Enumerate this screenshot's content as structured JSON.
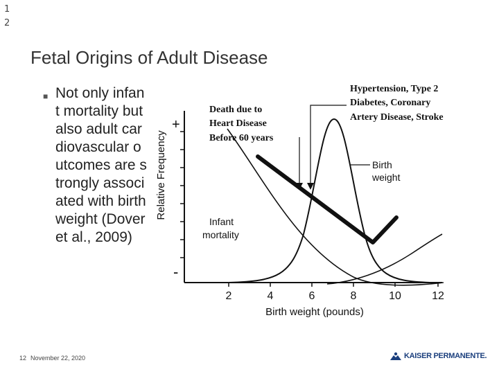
{
  "page_numbers": [
    "1",
    "2"
  ],
  "slide": {
    "title": "Fetal Origins of Adult Disease",
    "bullet": "Not only infant mortality but also adult cardiovascular outcomes are strongly associated with birth weight (Dover et al., 2009)"
  },
  "figure": {
    "ylabel": "Relative Frequency",
    "y_plus": "+",
    "y_minus": "-",
    "xlabel": "Birth weight (pounds)",
    "x_ticks": [
      "2",
      "4",
      "6",
      "8",
      "10",
      "12"
    ],
    "annotation_death": [
      "Death due to",
      "Heart Disease",
      "Before 60 years"
    ],
    "annotation_hypertension": [
      "Hypertension, Type 2",
      "Diabetes, Coronary",
      "Artery Disease, Stroke"
    ],
    "label_birth_weight": [
      "Birth",
      "weight"
    ],
    "label_infant_mortality": [
      "Infant",
      "mortality"
    ]
  },
  "footer": {
    "slide_number": "12",
    "date": "November 22, 2020",
    "logo_text": "KAISER PERMANENTE."
  },
  "colors": {
    "logo": "#1b3f7d"
  }
}
